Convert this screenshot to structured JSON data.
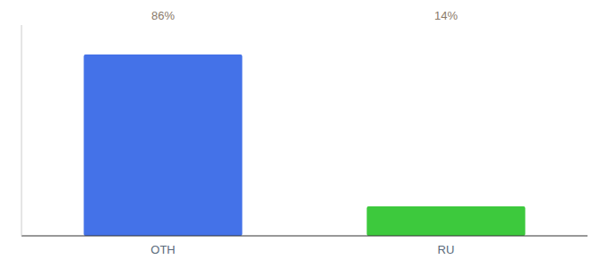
{
  "chart_data": {
    "type": "bar",
    "categories": [
      "OTH",
      "RU"
    ],
    "values": [
      86,
      14
    ],
    "value_labels": [
      "86%",
      "14%"
    ],
    "colors": [
      "#4472e8",
      "#3dc93d"
    ],
    "ylim": [
      0,
      100
    ],
    "data_labels": true,
    "tick_labels": "x"
  }
}
